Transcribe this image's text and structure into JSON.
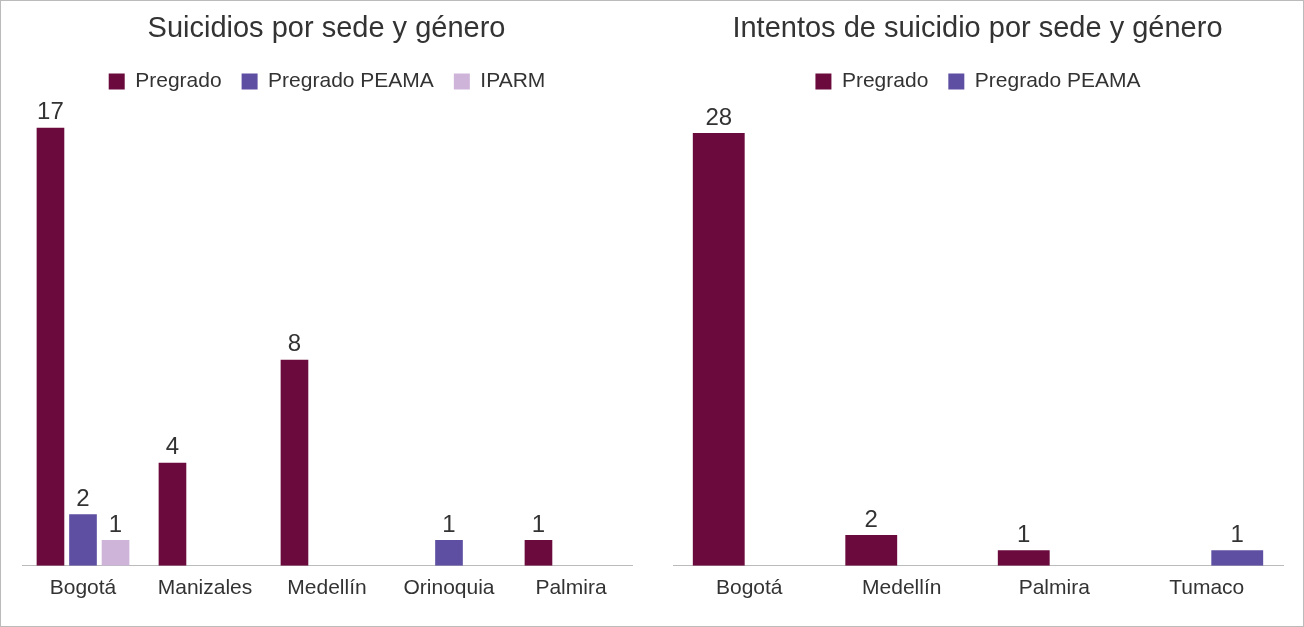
{
  "chart_data": [
    {
      "type": "bar",
      "title": "Suicidios por sede y género",
      "categories": [
        "Bogotá",
        "Manizales",
        "Medellín",
        "Orinoquia",
        "Palmira"
      ],
      "series": [
        {
          "name": "Pregrado",
          "color": "#6b0a3c",
          "values": [
            17,
            4,
            8,
            null,
            1
          ]
        },
        {
          "name": "Pregrado PEAMA",
          "color": "#5e4fa2",
          "values": [
            2,
            null,
            null,
            1,
            null
          ]
        },
        {
          "name": "IPARM",
          "color": "#cdb4d8",
          "values": [
            1,
            null,
            null,
            null,
            null
          ]
        }
      ],
      "data_labels": true,
      "legend": "top",
      "grid": false
    },
    {
      "type": "bar",
      "title": "Intentos de suicidio por sede y género",
      "categories": [
        "Bogotá",
        "Medellín",
        "Palmira",
        "Tumaco"
      ],
      "series": [
        {
          "name": "Pregrado",
          "color": "#6b0a3c",
          "values": [
            28,
            2,
            1,
            null
          ]
        },
        {
          "name": "Pregrado PEAMA",
          "color": "#5e4fa2",
          "values": [
            null,
            null,
            null,
            1
          ]
        }
      ],
      "data_labels": true,
      "legend": "top",
      "grid": false
    }
  ]
}
